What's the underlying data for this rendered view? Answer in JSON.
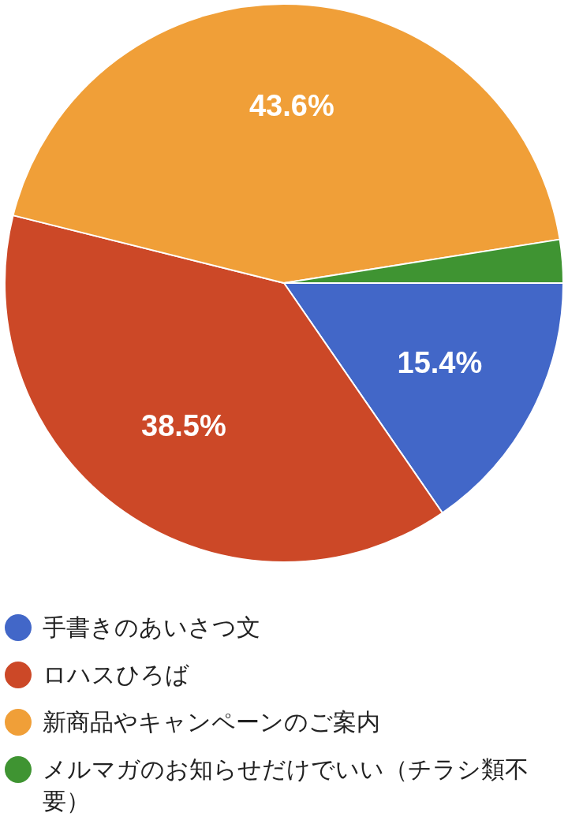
{
  "chart_data": {
    "type": "pie",
    "categories": [
      "手書きのあいさつ文",
      "ロハスひろば",
      "新商品やキャンペーンのご案内",
      "メルマガのお知らせだけでいい（チラシ類不要）"
    ],
    "values": [
      15.4,
      38.5,
      43.6,
      2.5
    ],
    "colors": [
      "#4267c8",
      "#cc4827",
      "#f09f38",
      "#3f9432"
    ],
    "value_labels": [
      "15.4%",
      "38.5%",
      "43.6%",
      null
    ],
    "legend": "bottom"
  }
}
